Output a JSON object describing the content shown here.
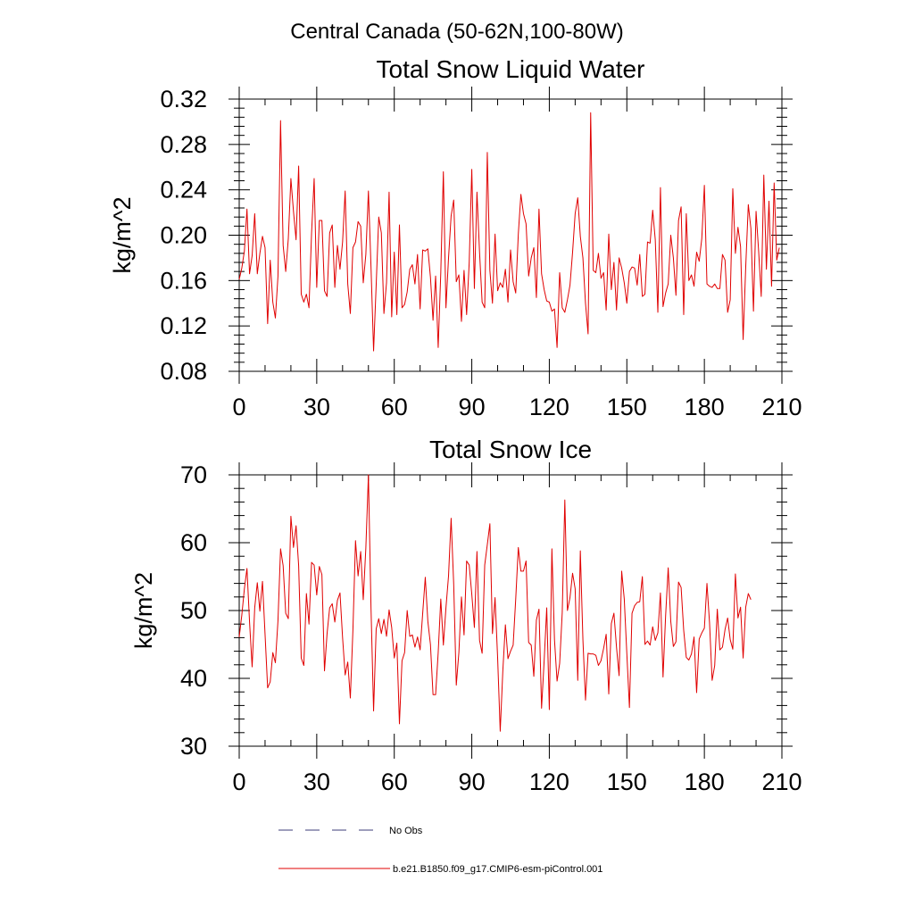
{
  "figure_title": "Central Canada (50-62N,100-80W)",
  "legend": [
    {
      "label": "No Obs",
      "color": "#3d3d7a",
      "style": "dashed"
    },
    {
      "label": "b.e21.B1850.f09_g17.CMIP6-esm-piControl.001",
      "color": "#e00000",
      "style": "solid"
    }
  ],
  "chart_data": [
    {
      "type": "line",
      "title": "Total Snow Liquid Water",
      "xlabel": "",
      "ylabel": "kg/m^2",
      "xlim": [
        0,
        210
      ],
      "ylim": [
        0.08,
        0.32
      ],
      "xticks": [
        0,
        30,
        60,
        90,
        120,
        150,
        180,
        210
      ],
      "yticks": [
        0.08,
        0.12,
        0.16,
        0.2,
        0.24,
        0.28,
        0.32
      ],
      "ytick_labels": [
        "0.08",
        "0.12",
        "0.16",
        "0.20",
        "0.24",
        "0.28",
        "0.32"
      ],
      "series": [
        {
          "name": "b.e21.B1850.f09_g17.CMIP6-esm-piControl.001",
          "color": "#e00000",
          "values": [
            0.161,
            0.171,
            0.186,
            0.223,
            0.166,
            0.182,
            0.219,
            0.166,
            0.184,
            0.199,
            0.189,
            0.122,
            0.178,
            0.141,
            0.127,
            0.164,
            0.301,
            0.191,
            0.168,
            0.197,
            0.25,
            0.221,
            0.196,
            0.261,
            0.148,
            0.141,
            0.148,
            0.136,
            0.202,
            0.25,
            0.154,
            0.213,
            0.213,
            0.151,
            0.146,
            0.202,
            0.209,
            0.154,
            0.191,
            0.17,
            0.194,
            0.239,
            0.157,
            0.131,
            0.189,
            0.194,
            0.212,
            0.208,
            0.158,
            0.183,
            0.239,
            0.172,
            0.098,
            0.156,
            0.216,
            0.202,
            0.131,
            0.158,
            0.238,
            0.128,
            0.185,
            0.13,
            0.209,
            0.136,
            0.139,
            0.15,
            0.17,
            0.174,
            0.157,
            0.183,
            0.135,
            0.187,
            0.186,
            0.188,
            0.163,
            0.125,
            0.164,
            0.101,
            0.167,
            0.256,
            0.136,
            0.18,
            0.217,
            0.231,
            0.159,
            0.165,
            0.124,
            0.169,
            0.13,
            0.176,
            0.258,
            0.153,
            0.238,
            0.185,
            0.141,
            0.136,
            0.273,
            0.169,
            0.14,
            0.201,
            0.151,
            0.158,
            0.154,
            0.17,
            0.141,
            0.187,
            0.159,
            0.149,
            0.201,
            0.236,
            0.219,
            0.21,
            0.164,
            0.18,
            0.189,
            0.145,
            0.223,
            0.166,
            0.152,
            0.142,
            0.141,
            0.133,
            0.135,
            0.101,
            0.167,
            0.136,
            0.132,
            0.143,
            0.156,
            0.185,
            0.219,
            0.233,
            0.199,
            0.18,
            0.14,
            0.113,
            0.308,
            0.169,
            0.167,
            0.184,
            0.162,
            0.167,
            0.134,
            0.201,
            0.152,
            0.176,
            0.134,
            0.18,
            0.171,
            0.158,
            0.14,
            0.168,
            0.172,
            0.171,
            0.156,
            0.183,
            0.146,
            0.148,
            0.194,
            0.193,
            0.222,
            0.196,
            0.132,
            0.242,
            0.137,
            0.149,
            0.157,
            0.2,
            0.18,
            0.147,
            0.213,
            0.225,
            0.13,
            0.219,
            0.16,
            0.165,
            0.155,
            0.185,
            0.177,
            0.197,
            0.244,
            0.157,
            0.155,
            0.154,
            0.157,
            0.153,
            0.153,
            0.183,
            0.178,
            0.132,
            0.143,
            0.241,
            0.184,
            0.207,
            0.19,
            0.108,
            0.172,
            0.227,
            0.206,
            0.133,
            0.221,
            0.186,
            0.146,
            0.253,
            0.17,
            0.23,
            0.155,
            0.246,
            0.178,
            0.189
          ]
        }
      ]
    },
    {
      "type": "line",
      "title": "Total Snow Ice",
      "xlabel": "",
      "ylabel": "kg/m^2",
      "xlim": [
        0,
        210
      ],
      "ylim": [
        30,
        70
      ],
      "xticks": [
        0,
        30,
        60,
        90,
        120,
        150,
        180,
        210
      ],
      "yticks": [
        30,
        40,
        50,
        60,
        70
      ],
      "ytick_labels": [
        "30",
        "40",
        "50",
        "60",
        "70"
      ],
      "series": [
        {
          "name": "b.e21.B1850.f09_g17.CMIP6-esm-piControl.001",
          "color": "#e00000",
          "values": [
            46.1,
            49.3,
            53.2,
            56.2,
            48.3,
            41.7,
            50.4,
            54.1,
            49.9,
            54.3,
            46.5,
            38.6,
            39.5,
            43.8,
            42.3,
            48.5,
            59.1,
            56.6,
            49.6,
            48.8,
            63.9,
            59.3,
            62.5,
            56.6,
            43.0,
            41.9,
            52.5,
            48.0,
            57.1,
            56.7,
            52.3,
            56.5,
            55.3,
            41.1,
            46.6,
            50.4,
            51.0,
            48.3,
            51.5,
            52.6,
            46.0,
            40.5,
            42.4,
            37.1,
            47.1,
            60.3,
            55.1,
            58.7,
            51.6,
            59.2,
            70.0,
            50.4,
            35.2,
            47.3,
            48.8,
            46.6,
            48.7,
            46.2,
            50.1,
            47.5,
            43.0,
            45.2,
            33.3,
            42.6,
            43.8,
            50.0,
            46.2,
            46.4,
            44.6,
            46.1,
            44.2,
            49.6,
            54.9,
            48.4,
            45.0,
            37.6,
            37.6,
            43.8,
            51.7,
            44.9,
            50.4,
            55.1,
            63.6,
            53.9,
            39.0,
            43.8,
            52.0,
            46.4,
            57.3,
            56.7,
            52.4,
            47.5,
            58.7,
            45.6,
            43.7,
            56.7,
            59.7,
            62.8,
            46.6,
            51.9,
            43.0,
            32.2,
            41.0,
            47.9,
            42.9,
            44.0,
            44.9,
            51.7,
            59.3,
            55.8,
            55.8,
            57.3,
            45.3,
            44.9,
            40.3,
            48.6,
            50.2,
            35.6,
            42.6,
            50.4,
            35.4,
            59.1,
            45.7,
            39.6,
            42.2,
            49.7,
            66.3,
            50.0,
            51.9,
            55.5,
            53.2,
            39.7,
            58.8,
            45.7,
            36.8,
            43.7,
            43.6,
            43.6,
            43.4,
            41.9,
            42.6,
            44.4,
            46.5,
            37.7,
            48.1,
            49.6,
            44.6,
            40.4,
            55.8,
            51.7,
            43.6,
            35.7,
            49.6,
            50.7,
            51.2,
            51.3,
            55.0,
            45.0,
            45.5,
            44.9,
            47.6,
            45.6,
            46.7,
            52.6,
            40.2,
            49.2,
            56.3,
            48.4,
            44.7,
            45.4,
            54.2,
            53.4,
            47.1,
            43.1,
            42.7,
            43.6,
            46.1,
            37.9,
            45.8,
            46.7,
            47.4,
            54.0,
            48.2,
            39.7,
            41.9,
            50.2,
            44.2,
            44.6,
            47.2,
            48.9,
            45.7,
            44.3,
            55.4,
            48.9,
            50.5,
            43.0,
            50.5,
            52.5,
            51.6
          ]
        }
      ]
    }
  ]
}
